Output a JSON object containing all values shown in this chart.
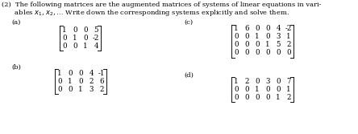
{
  "bg_color": "#ffffff",
  "text_color": "#000000",
  "figsize": [
    4.44,
    1.67
  ],
  "dpi": 100,
  "matrix_a": [
    [
      "1",
      "0",
      "0",
      "5"
    ],
    [
      "0",
      "1",
      "0",
      "-2"
    ],
    [
      "0",
      "0",
      "1",
      "4"
    ]
  ],
  "matrix_b": [
    [
      "1",
      "0",
      "0",
      "4",
      "-1"
    ],
    [
      "0",
      "1",
      "0",
      "2",
      "6"
    ],
    [
      "0",
      "0",
      "1",
      "3",
      "2"
    ]
  ],
  "matrix_c": [
    [
      "1",
      "6",
      "0",
      "0",
      "4",
      "-2"
    ],
    [
      "0",
      "0",
      "1",
      "0",
      "3",
      "1"
    ],
    [
      "0",
      "0",
      "0",
      "1",
      "5",
      "2"
    ],
    [
      "0",
      "0",
      "0",
      "0",
      "0",
      "0"
    ]
  ],
  "matrix_d": [
    [
      "1",
      "2",
      "0",
      "3",
      "0",
      "7"
    ],
    [
      "0",
      "0",
      "1",
      "0",
      "0",
      "1"
    ],
    [
      "0",
      "0",
      "0",
      "0",
      "1",
      "2"
    ]
  ]
}
